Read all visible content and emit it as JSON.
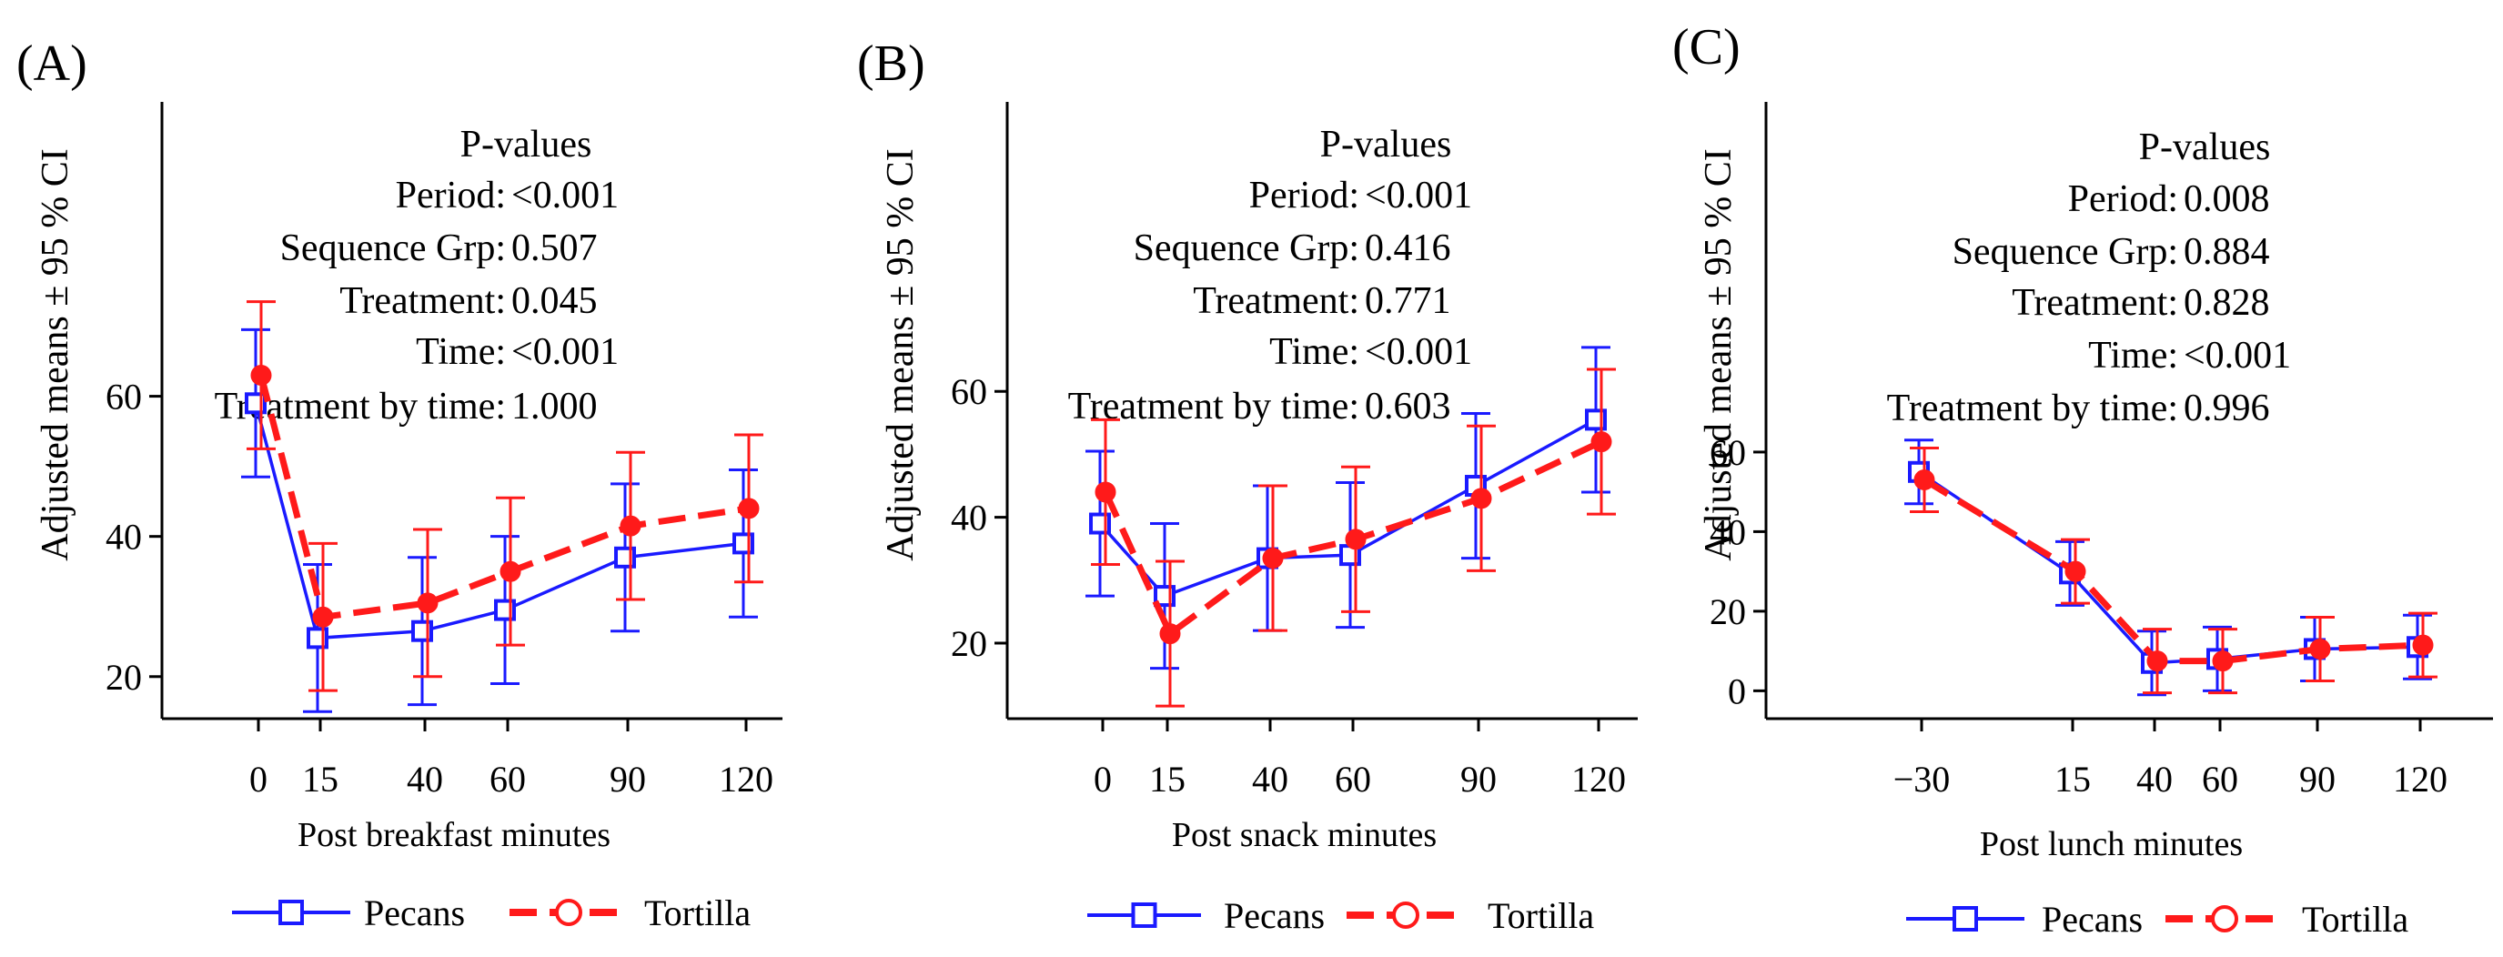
{
  "colors": {
    "pecans": "#1a1aff",
    "tortilla": "#ff1a1a",
    "axis": "#000000"
  },
  "chart_data": [
    {
      "panel_label": "(A)",
      "type": "line",
      "title": "",
      "xlabel": "Post breakfast minutes",
      "ylabel": "Adjusted means ± 95 % CI",
      "x": [
        0,
        15,
        40,
        60,
        90,
        120
      ],
      "x_ticks": [
        "0",
        "15",
        "40",
        "60",
        "90",
        "120"
      ],
      "y_ticks": [
        20,
        40,
        60
      ],
      "ylim": [
        14,
        102
      ],
      "series": [
        {
          "name": "Pecans",
          "marker": "square",
          "dash": "solid",
          "values": [
            59,
            25.5,
            26.5,
            29.5,
            37,
            39
          ],
          "lower": [
            48.5,
            15,
            16,
            19,
            26.5,
            28.5
          ],
          "upper": [
            69.5,
            36,
            37,
            40,
            47.5,
            49.5
          ]
        },
        {
          "name": "Tortilla",
          "marker": "circle",
          "dash": "dashed",
          "values": [
            63,
            28.5,
            30.5,
            35,
            41.5,
            44
          ],
          "lower": [
            52.5,
            18,
            20,
            24.5,
            31,
            33.5
          ],
          "upper": [
            73.5,
            39,
            41,
            45.5,
            52,
            54.5
          ]
        }
      ],
      "pvalues": {
        "heading": "P-values",
        "rows": [
          {
            "label": "Period:",
            "value": "<0.001"
          },
          {
            "label": "Sequence Grp:",
            "value": "0.507"
          },
          {
            "label": "Treatment:",
            "value": "0.045"
          },
          {
            "label": "Time:",
            "value": "<0.001"
          },
          {
            "label": "Treatment by time:",
            "value": "1.000"
          }
        ]
      },
      "legend": [
        "Pecans",
        "Tortilla"
      ]
    },
    {
      "panel_label": "(B)",
      "type": "line",
      "title": "",
      "xlabel": "Post snack minutes",
      "ylabel": "Adjusted means ± 95 % CI",
      "x": [
        0,
        15,
        40,
        60,
        90,
        120
      ],
      "x_ticks": [
        "0",
        "15",
        "40",
        "60",
        "90",
        "120"
      ],
      "y_ticks": [
        20,
        40,
        60
      ],
      "ylim": [
        8,
        106
      ],
      "series": [
        {
          "name": "Pecans",
          "marker": "square",
          "dash": "solid",
          "values": [
            39,
            27.5,
            33.5,
            34,
            45,
            55.5
          ],
          "lower": [
            27.5,
            16,
            22,
            22.5,
            33.5,
            44
          ],
          "upper": [
            50.5,
            39,
            45,
            45.5,
            56.5,
            67
          ]
        },
        {
          "name": "Tortilla",
          "marker": "circle",
          "dash": "dashed",
          "values": [
            44,
            21.5,
            33.5,
            36.5,
            43,
            52
          ],
          "lower": [
            32.5,
            10,
            22,
            25,
            31.5,
            40.5
          ],
          "upper": [
            55.5,
            33,
            45,
            48,
            54.5,
            63.5
          ]
        }
      ],
      "pvalues": {
        "heading": "P-values",
        "rows": [
          {
            "label": "Period:",
            "value": "<0.001"
          },
          {
            "label": "Sequence Grp:",
            "value": "0.416"
          },
          {
            "label": "Treatment:",
            "value": "0.771"
          },
          {
            "label": "Time:",
            "value": "<0.001"
          },
          {
            "label": "Treatment by time:",
            "value": "0.603"
          }
        ]
      },
      "legend": [
        "Pecans",
        "Tortilla"
      ]
    },
    {
      "panel_label": "(C)",
      "type": "line",
      "title": "",
      "xlabel": "Post lunch minutes",
      "ylabel": "Adjusted means ± 95 % CI",
      "x": [
        -30,
        15,
        40,
        60,
        90,
        120
      ],
      "x_ticks": [
        "−30",
        "15",
        "40",
        "60",
        "90",
        "120"
      ],
      "y_ticks": [
        0,
        20,
        40,
        60
      ],
      "ylim": [
        -7,
        148
      ],
      "series": [
        {
          "name": "Pecans",
          "marker": "square",
          "dash": "solid",
          "values": [
            55,
            29.5,
            7,
            8,
            10.5,
            11
          ],
          "lower": [
            47,
            21.5,
            -1,
            0,
            2.5,
            3
          ],
          "upper": [
            63,
            37.5,
            15,
            16,
            18.5,
            19
          ]
        },
        {
          "name": "Tortilla",
          "marker": "circle",
          "dash": "dashed",
          "values": [
            53,
            30,
            7.5,
            7.5,
            10.5,
            11.5
          ],
          "lower": [
            45,
            22,
            -0.5,
            -0.5,
            2.5,
            3.5
          ],
          "upper": [
            61,
            38,
            15.5,
            15.5,
            18.5,
            19.5
          ]
        }
      ],
      "pvalues": {
        "heading": "P-values",
        "rows": [
          {
            "label": "Period:",
            "value": "0.008"
          },
          {
            "label": "Sequence Grp:",
            "value": "0.884"
          },
          {
            "label": "Treatment:",
            "value": "0.828"
          },
          {
            "label": "Time:",
            "value": "<0.001"
          },
          {
            "label": "Treatment by time:",
            "value": "0.996"
          }
        ]
      },
      "legend": [
        "Pecans",
        "Tortilla"
      ]
    }
  ]
}
